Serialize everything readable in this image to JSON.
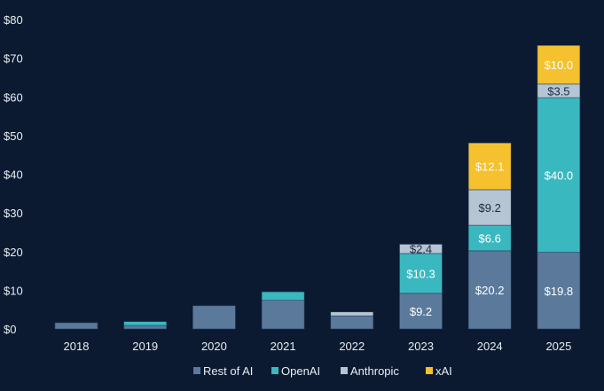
{
  "chart_data": {
    "type": "bar",
    "stacked": true,
    "categories": [
      "2018",
      "2019",
      "2020",
      "2021",
      "2022",
      "2023",
      "2024",
      "2025"
    ],
    "series": [
      {
        "name": "Rest of AI",
        "color": "#5b7a9b",
        "values": [
          1.6,
          0.9,
          6.0,
          7.4,
          3.4,
          9.2,
          20.2,
          19.8
        ],
        "labels": [
          "",
          "",
          "",
          "",
          "",
          "$9.2",
          "$20.2",
          "$19.8"
        ]
      },
      {
        "name": "OpenAI",
        "color": "#3ab8c0",
        "values": [
          0,
          1.0,
          0,
          2.2,
          0,
          10.3,
          6.6,
          40.0
        ],
        "labels": [
          "",
          "",
          "",
          "",
          "",
          "$10.3",
          "$6.6",
          "$40.0"
        ]
      },
      {
        "name": "Anthropic",
        "color": "#b6c5d3",
        "values": [
          0,
          0,
          0,
          0,
          1.0,
          2.4,
          9.2,
          3.5
        ],
        "labels": [
          "",
          "",
          "",
          "",
          "",
          "$2.4",
          "$9.2",
          "$3.5"
        ]
      },
      {
        "name": "xAI",
        "color": "#f5c12e",
        "values": [
          0,
          0,
          0,
          0,
          0,
          0,
          12.1,
          10.0
        ],
        "labels": [
          "",
          "",
          "",
          "",
          "",
          "",
          "$12.1",
          "$10.0"
        ]
      }
    ],
    "y_ticks": [
      "$0",
      "$10",
      "$20",
      "$30",
      "$40",
      "$50",
      "$60",
      "$70",
      "$80"
    ],
    "ylim": [
      0,
      80
    ],
    "grid": false,
    "legend_position": "bottom"
  }
}
